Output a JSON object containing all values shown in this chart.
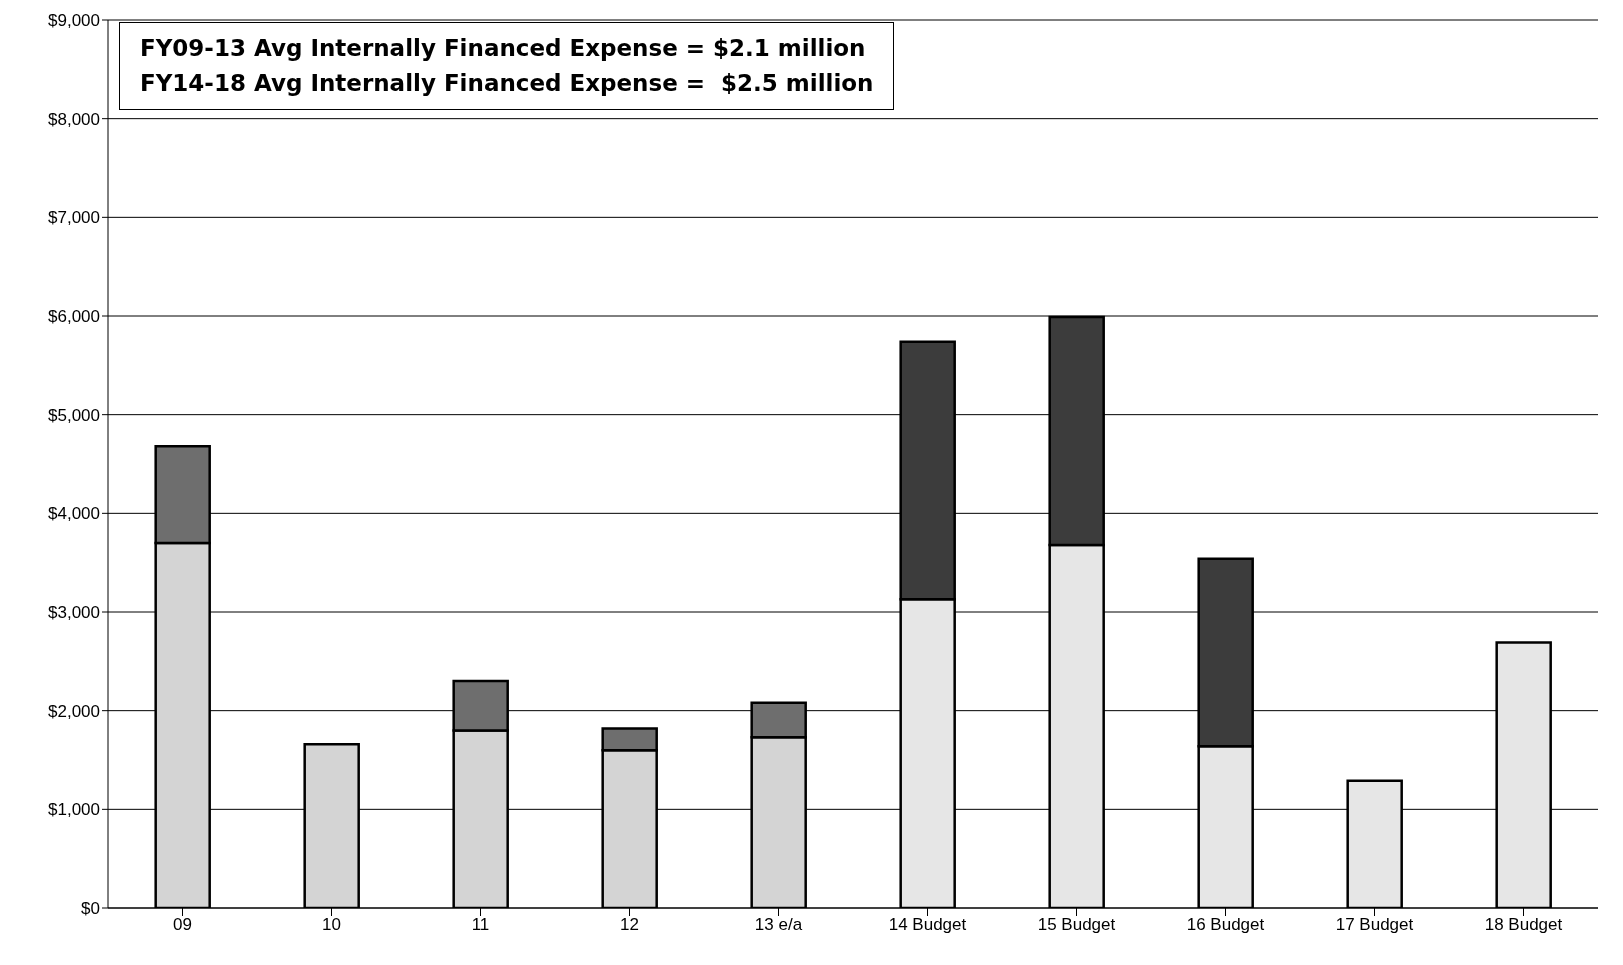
{
  "chart_data": {
    "type": "bar",
    "stacked": true,
    "categories": [
      "09",
      "10",
      "11",
      "12",
      "13 e/a",
      "14 Budget",
      "15 Budget",
      "16 Budget",
      "17 Budget",
      "18 Budget"
    ],
    "series": [
      {
        "color": "#d4d4d4",
        "values": [
          3700,
          1660,
          1800,
          1600,
          1730,
          null,
          null,
          null,
          null,
          null
        ]
      },
      {
        "color": "#6e6e6e",
        "values": [
          980,
          null,
          500,
          220,
          350,
          null,
          null,
          null,
          null,
          null
        ]
      },
      {
        "color": "#e6e6e6",
        "values": [
          null,
          null,
          null,
          null,
          null,
          3130,
          3680,
          1640,
          1290,
          2690
        ]
      },
      {
        "color": "#3c3c3c",
        "values": [
          null,
          null,
          null,
          null,
          null,
          2610,
          2310,
          1900,
          null,
          null
        ]
      }
    ],
    "ylim": [
      0,
      9000
    ],
    "yticks": [
      {
        "value": 0,
        "label": "$0"
      },
      {
        "value": 1000,
        "label": "$1,000"
      },
      {
        "value": 2000,
        "label": "$2,000"
      },
      {
        "value": 3000,
        "label": "$3,000"
      },
      {
        "value": 4000,
        "label": "$4,000"
      },
      {
        "value": 5000,
        "label": "$5,000"
      },
      {
        "value": 6000,
        "label": "$6,000"
      },
      {
        "value": 7000,
        "label": "$7,000"
      },
      {
        "value": 8000,
        "label": "$8,000"
      },
      {
        "value": 9000,
        "label": "$9,000"
      }
    ],
    "grid": "y",
    "annotations": [
      "FY09-13 Avg Internally Financed Expense = $2.1 million",
      "FY14-18 Avg Internally Financed Expense =  $2.5 million"
    ]
  }
}
